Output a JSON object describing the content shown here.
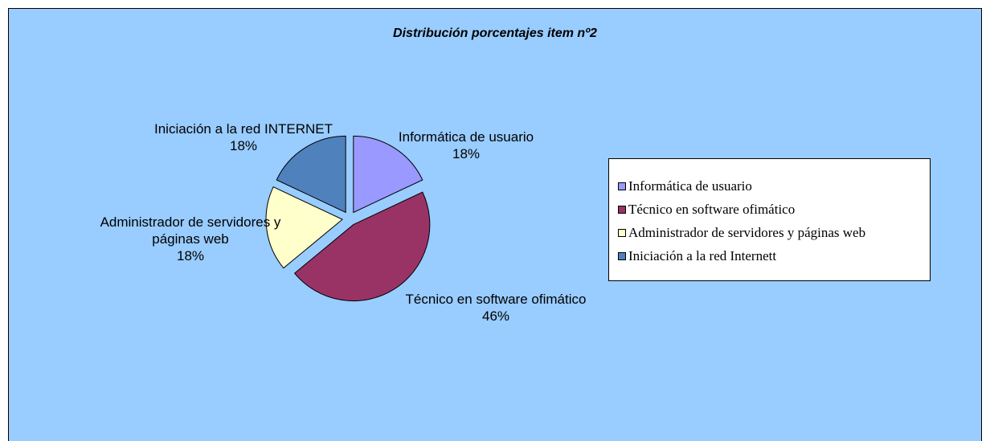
{
  "chart_data": {
    "type": "pie",
    "title": "Distribución porcentajes item nº2",
    "series": [
      {
        "name": "Informática de usuario",
        "color": "#9999ff"
      },
      {
        "name": "Técnico en software ofimático",
        "color": "#993366"
      },
      {
        "name": "Administrador de servidores y páginas web",
        "color": "#ffffcc"
      },
      {
        "name": "Iniciación a la red Internett",
        "color": "#4f81bd"
      }
    ],
    "slice_labels": [
      "Informática de usuario",
      "Técnico en software ofimático",
      "Administrador de servidores y páginas web",
      "Iniciación a la red INTERNET"
    ],
    "values": [
      18,
      46,
      18,
      18
    ],
    "value_labels": [
      "18%",
      "46%",
      "18%",
      "18%"
    ],
    "legend": "right"
  }
}
